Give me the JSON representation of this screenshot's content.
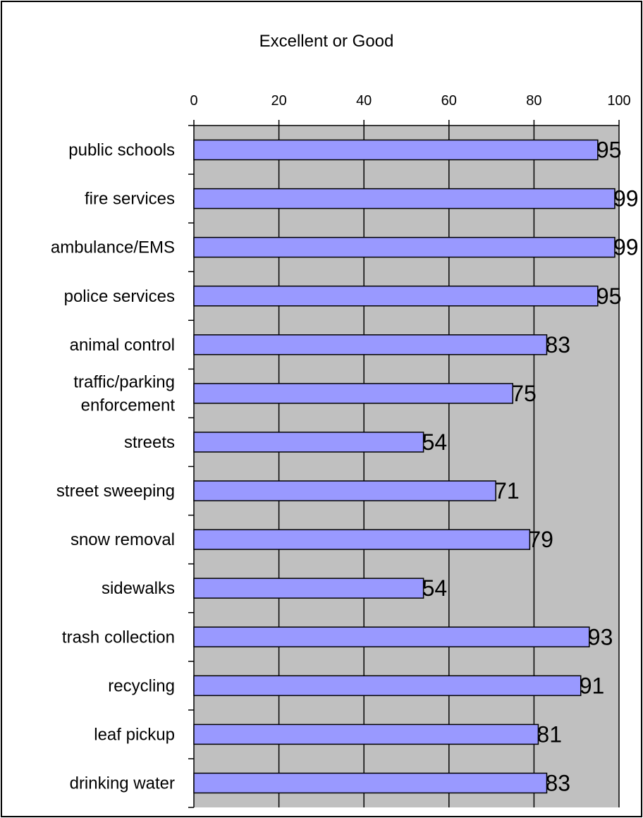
{
  "chart_data": {
    "type": "bar",
    "orientation": "horizontal",
    "title": "Excellent or Good",
    "xlim": [
      0,
      100
    ],
    "xticks": [
      0,
      20,
      40,
      60,
      80,
      100
    ],
    "x_axis_position": "top",
    "grid": true,
    "plot_background": "#c0c0c0",
    "bar_color": "#9999ff",
    "categories": [
      "public schools",
      "fire services",
      "ambulance/EMS",
      "police services",
      "animal control",
      "traffic/parking enforcement",
      "streets",
      "street sweeping",
      "snow removal",
      "sidewalks",
      "trash collection",
      "recycling",
      "leaf pickup",
      "drinking water"
    ],
    "category_lines": {
      "5": [
        "traffic/parking",
        "enforcement"
      ]
    },
    "values": [
      95,
      99,
      99,
      95,
      83,
      75,
      54,
      71,
      79,
      54,
      93,
      91,
      81,
      83
    ]
  }
}
